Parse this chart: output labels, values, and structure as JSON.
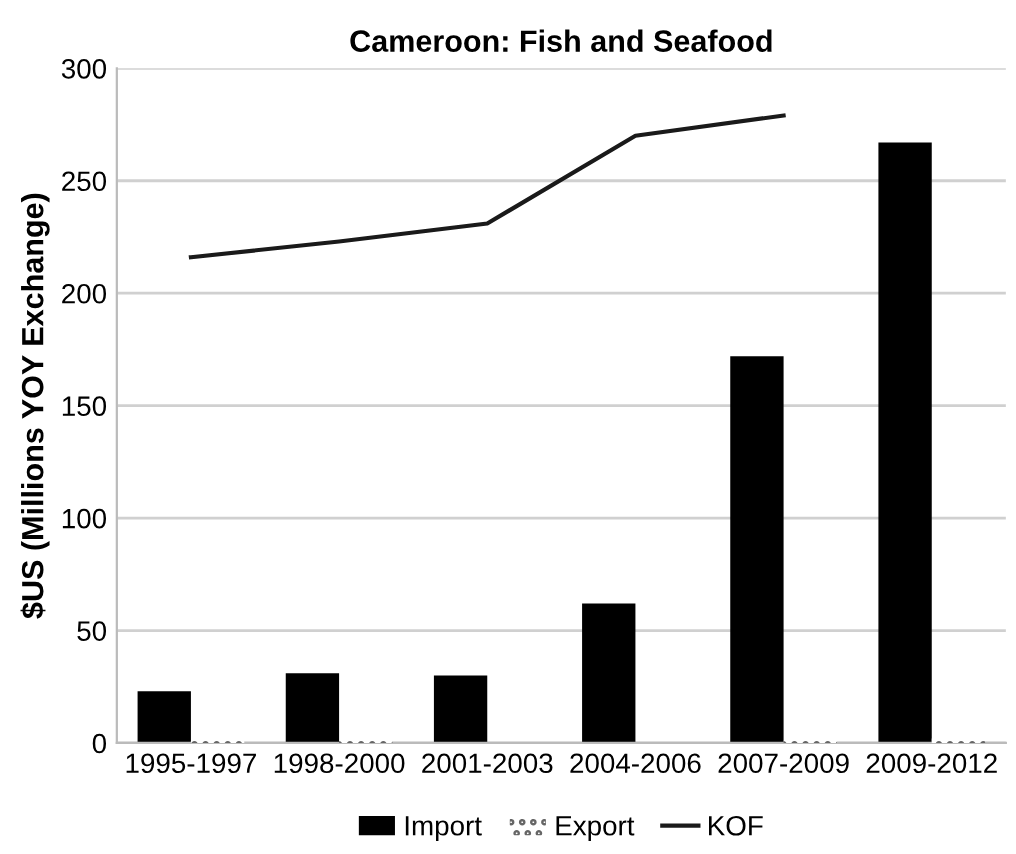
{
  "chart_data": {
    "type": "bar",
    "title": "Cameroon: Fish and Seafood",
    "ylabel": "$US (Millions YOY Exchange)",
    "categories": [
      "1995-1997",
      "1998-2000",
      "2001-2003",
      "2004-2006",
      "2007-2009",
      "2009-2012"
    ],
    "series": [
      {
        "name": "Import",
        "color": "#000000",
        "values": [
          23,
          31,
          30,
          62,
          172,
          267
        ]
      },
      {
        "name": "Export",
        "color": "#666666",
        "values": [
          1,
          1,
          0,
          0,
          1,
          2
        ]
      },
      {
        "name": "KOF",
        "type": "line",
        "color": "#1a1a1a",
        "values": [
          216,
          223,
          231,
          270,
          279,
          null
        ]
      }
    ],
    "ylim": [
      0,
      300
    ],
    "yticks": [
      0,
      50,
      100,
      150,
      200,
      250,
      300
    ],
    "grid": "y",
    "legend": "bottom"
  }
}
